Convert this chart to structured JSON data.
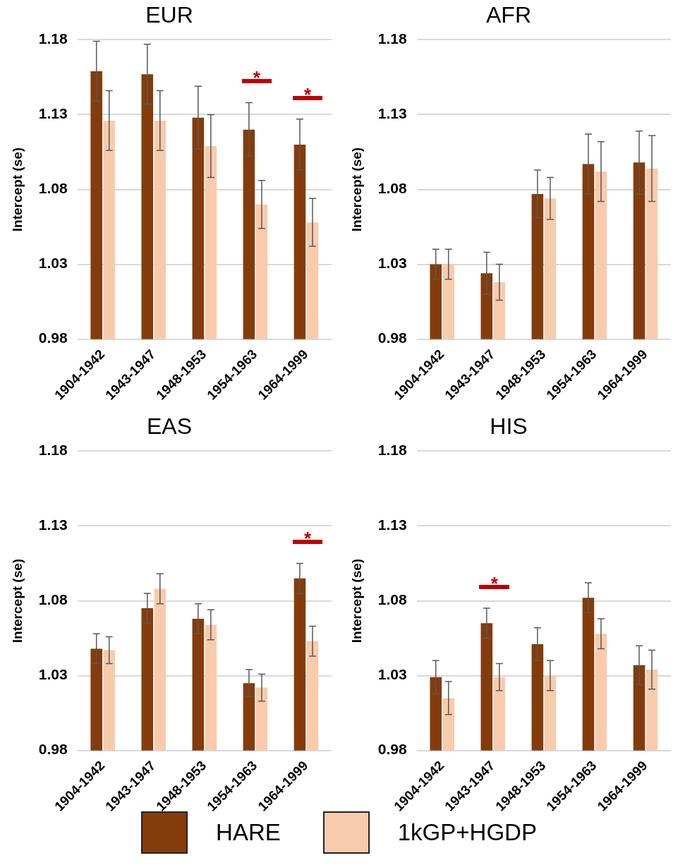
{
  "chart_data": [
    {
      "type": "bar",
      "title": "EUR",
      "ylabel": "Intercept (se)",
      "categories": [
        "1904-1942",
        "1943-1947",
        "1948-1953",
        "1954-1963",
        "1964-1999"
      ],
      "ylim": [
        0.98,
        1.18
      ],
      "yticks": [
        0.98,
        1.03,
        1.08,
        1.13,
        1.18
      ],
      "grid": "y",
      "series": [
        {
          "color": "#843c0c",
          "values": [
            1.159,
            1.157,
            1.128,
            1.12,
            1.11
          ],
          "errors": [
            0.02,
            0.02,
            0.021,
            0.018,
            0.017
          ]
        },
        {
          "color": "#f8cbad",
          "values": [
            1.126,
            1.126,
            1.109,
            1.07,
            1.058
          ],
          "errors": [
            0.02,
            0.02,
            0.021,
            0.016,
            0.016
          ]
        }
      ],
      "annotations": [
        "*",
        "*"
      ]
    },
    {
      "type": "bar",
      "title": "AFR",
      "ylabel": "Intercept (se)",
      "categories": [
        "1904-1942",
        "1943-1947",
        "1948-1953",
        "1954-1963",
        "1964-1999"
      ],
      "ylim": [
        0.98,
        1.18
      ],
      "yticks": [
        0.98,
        1.03,
        1.08,
        1.13,
        1.18
      ],
      "grid": "y",
      "series": [
        {
          "color": "#843c0c",
          "values": [
            1.03,
            1.024,
            1.077,
            1.097,
            1.098
          ],
          "errors": [
            0.01,
            0.014,
            0.016,
            0.02,
            0.021
          ]
        },
        {
          "color": "#f8cbad",
          "values": [
            1.03,
            1.018,
            1.074,
            1.092,
            1.094
          ],
          "errors": [
            0.01,
            0.012,
            0.014,
            0.02,
            0.022
          ]
        }
      ]
    },
    {
      "type": "bar",
      "title": "EAS",
      "ylabel": "Intercept (se)",
      "categories": [
        "1904-1942",
        "1943-1947",
        "1948-1953",
        "1954-1963",
        "1964-1999"
      ],
      "ylim": [
        0.98,
        1.18
      ],
      "yticks": [
        0.98,
        1.03,
        1.08,
        1.13,
        1.18
      ],
      "grid": "y",
      "series": [
        {
          "color": "#843c0c",
          "values": [
            1.048,
            1.075,
            1.068,
            1.025,
            1.095
          ],
          "errors": [
            0.01,
            0.01,
            0.01,
            0.009,
            0.01
          ]
        },
        {
          "color": "#f8cbad",
          "values": [
            1.047,
            1.088,
            1.064,
            1.022,
            1.053
          ],
          "errors": [
            0.009,
            0.01,
            0.01,
            0.009,
            0.01
          ]
        }
      ],
      "annotations": [
        "*"
      ]
    },
    {
      "type": "bar",
      "title": "HIS",
      "ylabel": "Intercept (se)",
      "categories": [
        "1904-1942",
        "1943-1947",
        "1948-1953",
        "1954-1963",
        "1964-1999"
      ],
      "ylim": [
        0.98,
        1.18
      ],
      "yticks": [
        0.98,
        1.03,
        1.08,
        1.13,
        1.18
      ],
      "grid": "y",
      "legend": "bottom",
      "series": [
        {
          "name": "HARE",
          "color": "#843c0c",
          "values": [
            1.029,
            1.065,
            1.051,
            1.082,
            1.037
          ],
          "errors": [
            0.011,
            0.01,
            0.011,
            0.01,
            0.013
          ]
        },
        {
          "name": "1kGP+HGDP",
          "color": "#f8cbad",
          "values": [
            1.015,
            1.029,
            1.03,
            1.058,
            1.034
          ],
          "errors": [
            0.011,
            0.009,
            0.01,
            0.01,
            0.013
          ]
        }
      ],
      "annotations": [
        "*"
      ]
    }
  ]
}
